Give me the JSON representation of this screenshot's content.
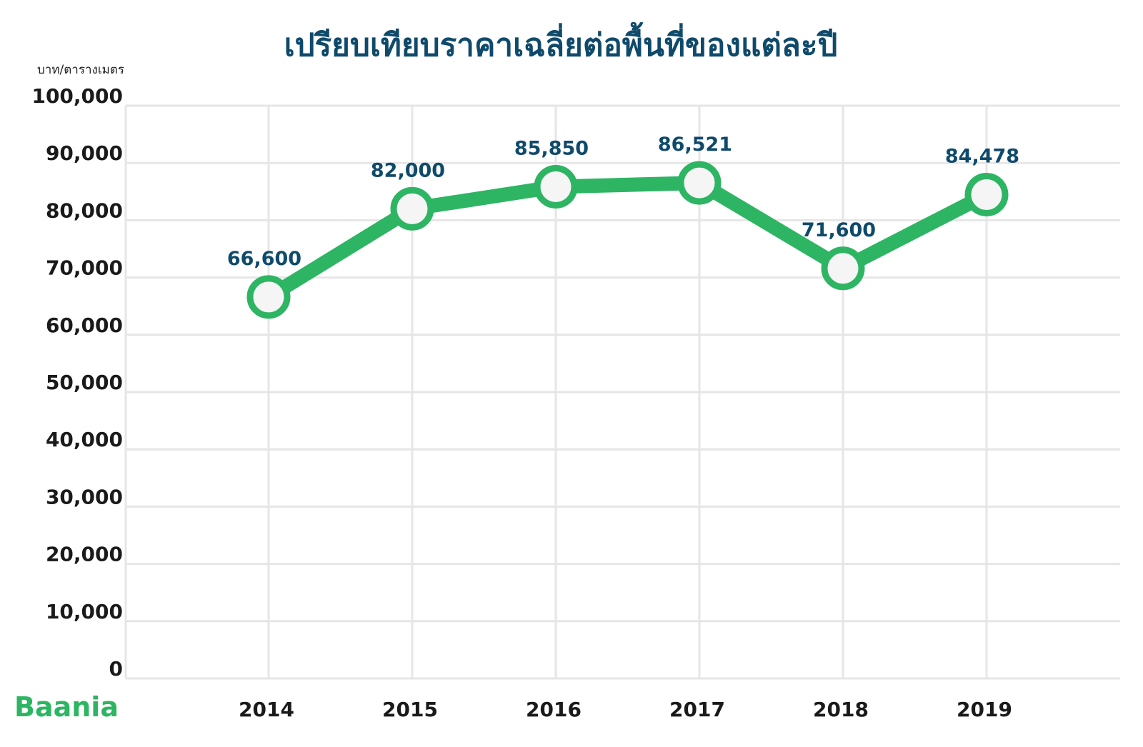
{
  "chart_data": {
    "type": "line",
    "title": "เปรียบเทียบราคาเฉลี่ยต่อพื้นที่ของแต่ละปี",
    "ylabel": "บาท/ตารางเมตร",
    "xlabel": "",
    "x": [
      "2014",
      "2015",
      "2016",
      "2017",
      "2018",
      "2019"
    ],
    "series": [
      {
        "values": [
          66600,
          82000,
          85850,
          86521,
          71600,
          84478
        ]
      }
    ],
    "data_labels": [
      "66,600",
      "82,000",
      "85,850",
      "86,521",
      "71,600",
      "84,478"
    ],
    "ylim": [
      0,
      100000
    ],
    "yticks": [
      0,
      10000,
      20000,
      30000,
      40000,
      50000,
      60000,
      70000,
      80000,
      90000,
      100000
    ],
    "ytick_labels": [
      "0",
      "10,000",
      "20,000",
      "30,000",
      "40,000",
      "50,000",
      "60,000",
      "70,000",
      "80,000",
      "90,000",
      "100,000"
    ],
    "grid": true,
    "colors": {
      "line": "#2db563",
      "marker_fill": "#f5f5f5",
      "title": "#0f4a6b",
      "labels": "#0f4a6b",
      "grid": "#e6e6e6"
    }
  },
  "brand": {
    "logo_text": "Baania"
  }
}
